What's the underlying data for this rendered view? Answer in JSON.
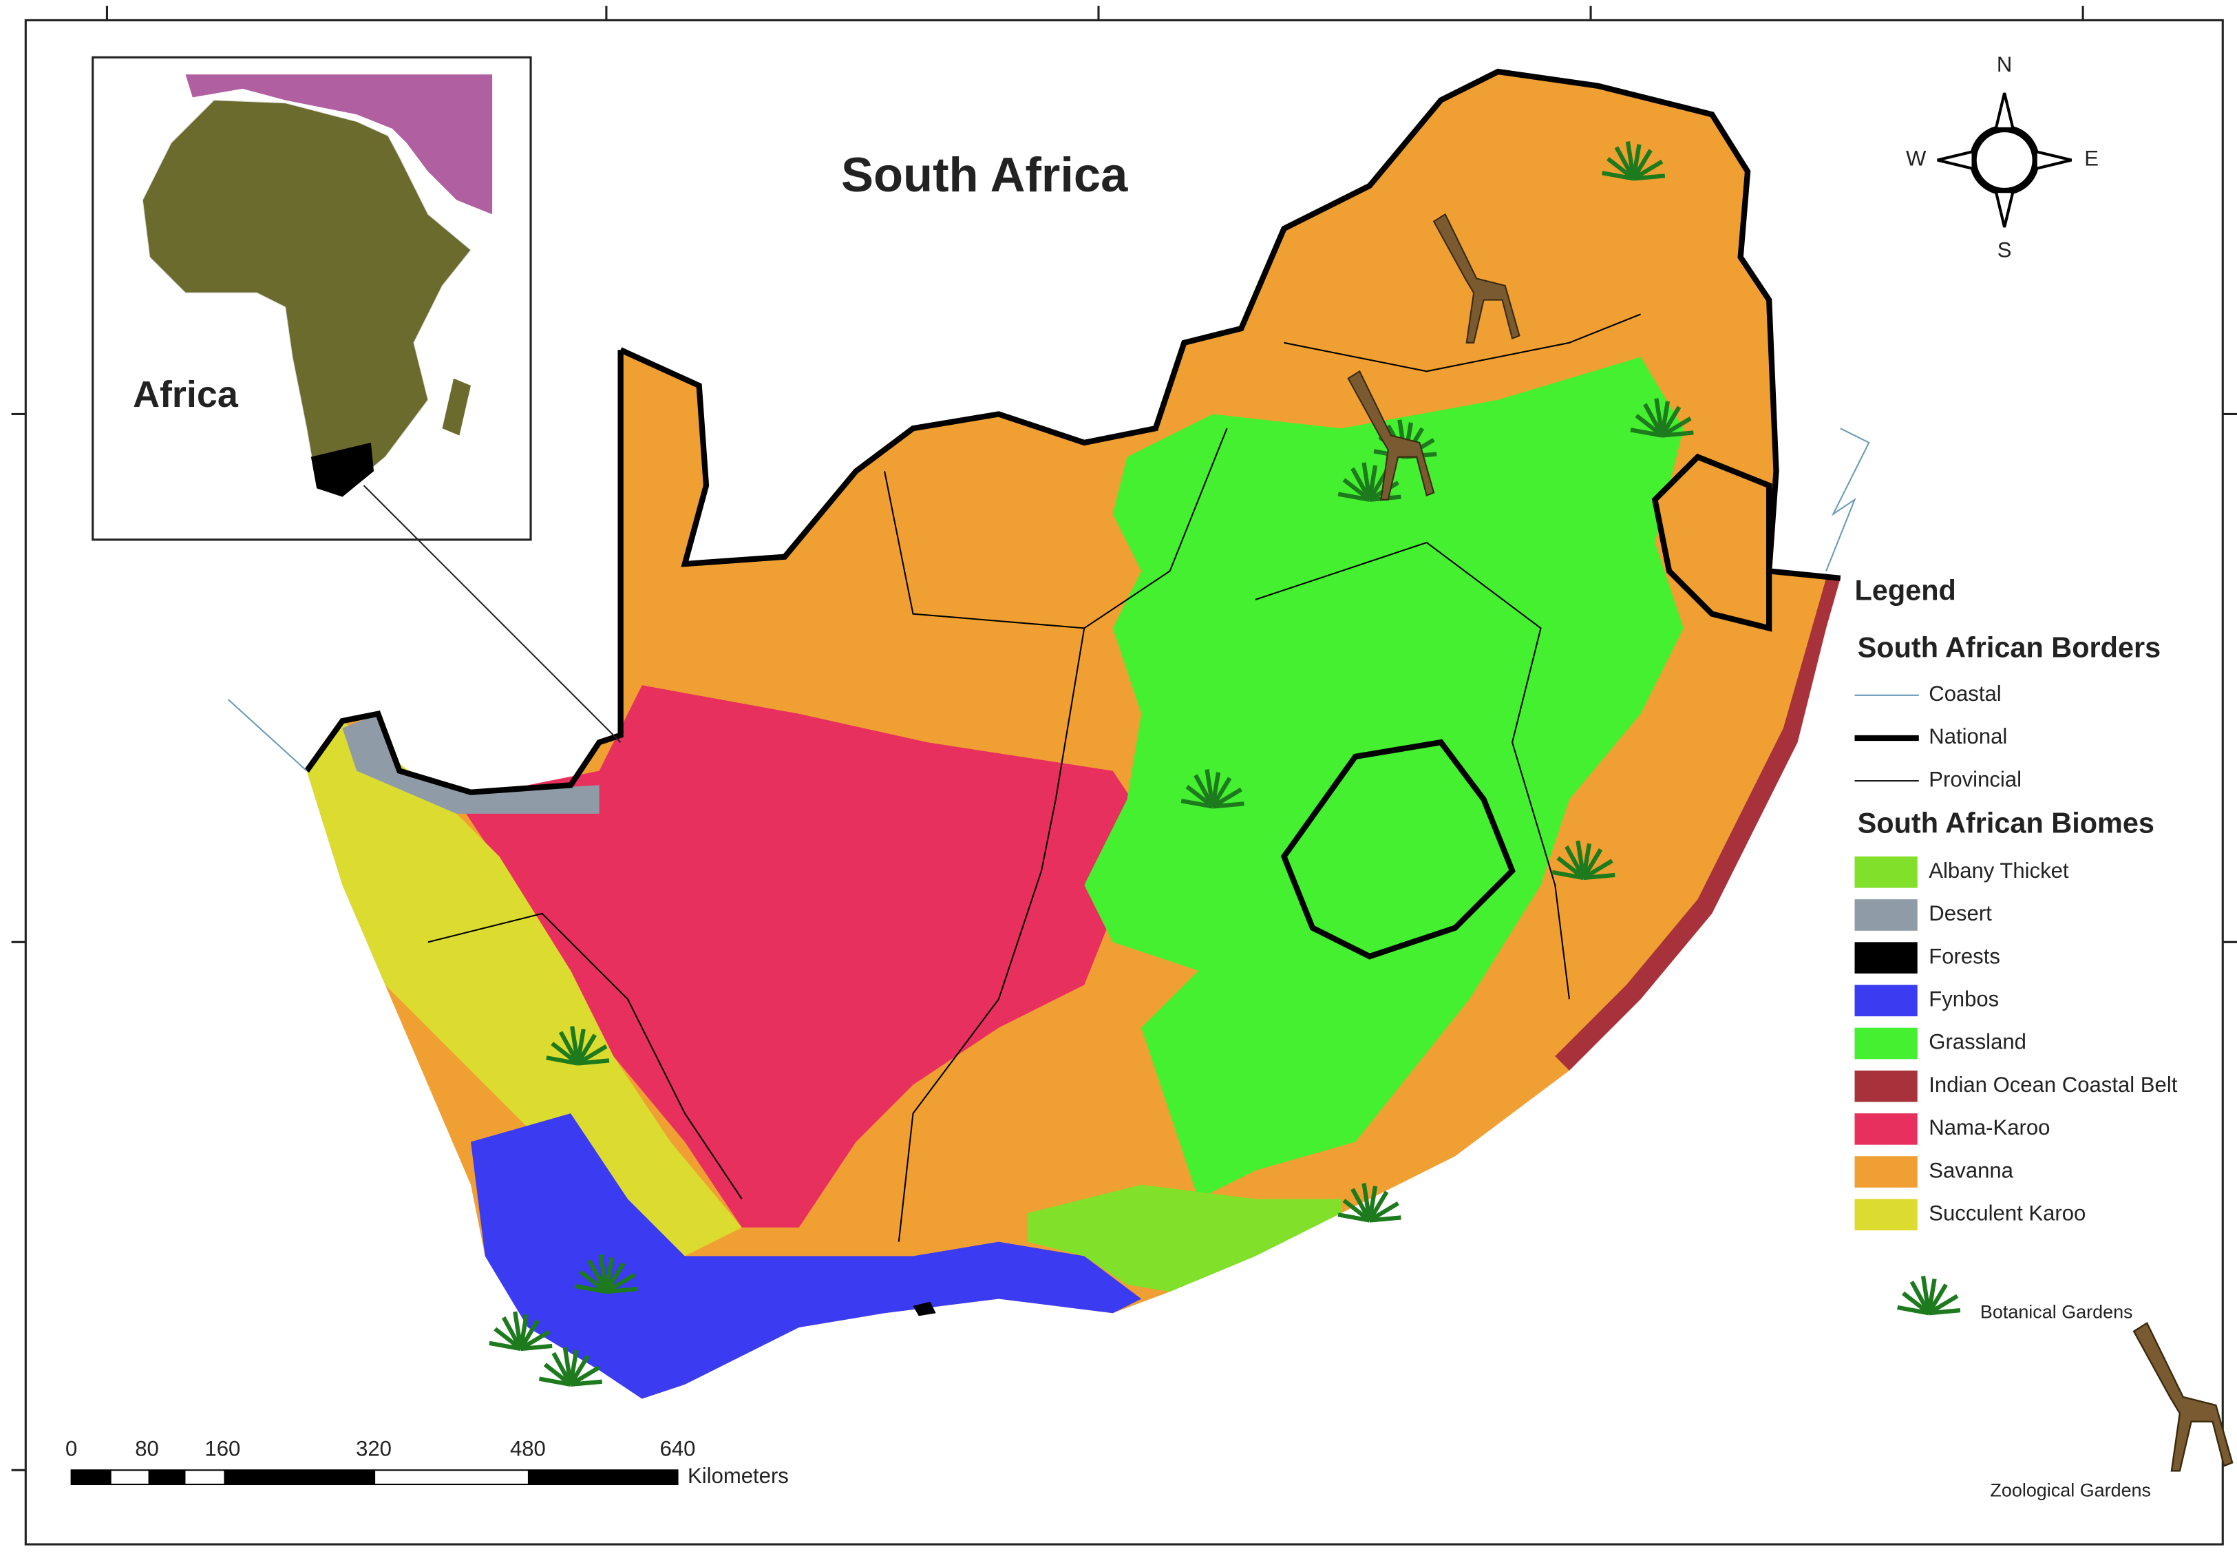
{
  "title": "South Africa",
  "inset": {
    "label": "Africa"
  },
  "compass": {
    "north": "N",
    "east": "E",
    "south": "S",
    "west": "W"
  },
  "legend": {
    "title": "Legend",
    "borders": {
      "title": "South African Borders",
      "items": [
        "Coastal",
        "National",
        "Provincial"
      ]
    },
    "biomes": {
      "title": "South African Biomes",
      "items": [
        {
          "name": "Albany Thicket",
          "color": "#80e02a"
        },
        {
          "name": "Desert",
          "color": "#8f9ba6"
        },
        {
          "name": "Forests",
          "color": "#000000"
        },
        {
          "name": "Fynbos",
          "color": "#3b3bf2"
        },
        {
          "name": "Grassland",
          "color": "#44f030"
        },
        {
          "name": "Indian Ocean Coastal Belt",
          "color": "#a8323c"
        },
        {
          "name": "Nama-Karoo",
          "color": "#e8305e"
        },
        {
          "name": "Savanna",
          "color": "#f0a032"
        },
        {
          "name": "Succulent Karoo",
          "color": "#dcdc30"
        }
      ]
    },
    "symbols": [
      "Botanical Gardens",
      "Zoological Gardens"
    ]
  },
  "scale_bar": {
    "ticks": [
      "0",
      "80",
      "160",
      "320",
      "480",
      "640"
    ],
    "unit": "Kilometers"
  }
}
